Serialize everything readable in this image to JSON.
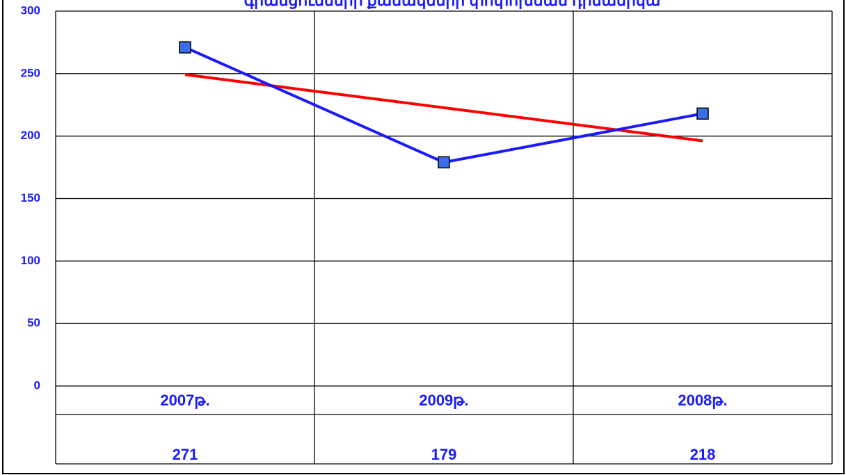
{
  "chart_data": {
    "type": "line",
    "title": "գրանցումների քանակների փոփոխման դինամիկա",
    "categories": [
      "2007թ.",
      "2009թ.",
      "2008թ."
    ],
    "series": [
      {
        "color": "#1a1aff",
        "marker_color": "#3a6ee8",
        "values": [
          271,
          179,
          218
        ]
      }
    ],
    "trendline": {
      "color": "#ff0000",
      "values": [
        249.2,
        222.7,
        196.2
      ]
    },
    "ylim": [
      0,
      300
    ],
    "yticks": [
      0,
      50,
      100,
      150,
      200,
      250,
      300
    ],
    "grid": true,
    "data_table": true
  }
}
